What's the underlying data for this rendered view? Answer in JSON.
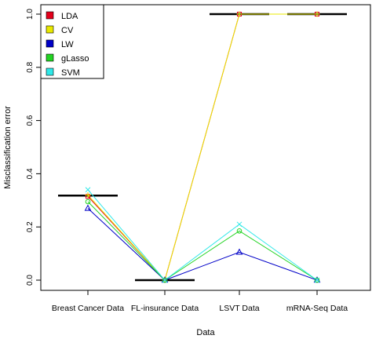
{
  "colors": {
    "LDA": "#e3001b",
    "CV": "#e8e800",
    "LW": "#0000c8",
    "gLasso": "#22d322",
    "SVM": "#2ee8e8",
    "reference_bar": "#000000",
    "frame": "#000000"
  },
  "chart_data": {
    "type": "line",
    "title": "",
    "xlabel": "Data",
    "ylabel": "Misclassification error",
    "categories": [
      "Breast Cancer Data",
      "FL-insurance Data",
      "LSVT Data",
      "mRNA-Seq Data"
    ],
    "ylim": [
      -0.02,
      1.02
    ],
    "yticks": [
      0.0,
      0.2,
      0.4,
      0.6,
      0.8,
      1.0
    ],
    "ytick_labels": [
      "0.0",
      "0.2",
      "0.4",
      "0.6",
      "0.8",
      "1.0"
    ],
    "grid": false,
    "legend": {
      "position": "top-left",
      "entries": [
        "LDA",
        "CV",
        "LW",
        "gLasso",
        "SVM"
      ]
    },
    "series": [
      {
        "name": "LDA",
        "values": [
          0.315,
          0.0,
          1.0,
          1.0
        ]
      },
      {
        "name": "CV",
        "values": [
          0.32,
          0.0,
          1.0,
          1.0
        ]
      },
      {
        "name": "LW",
        "values": [
          0.27,
          0.0,
          0.105,
          0.0
        ]
      },
      {
        "name": "gLasso",
        "values": [
          0.295,
          0.0,
          0.185,
          0.0
        ]
      },
      {
        "name": "SVM",
        "values": [
          0.34,
          0.0,
          0.21,
          0.0
        ]
      }
    ],
    "reference_levels": [
      0.318,
      0.0,
      1.0,
      1.0
    ]
  }
}
